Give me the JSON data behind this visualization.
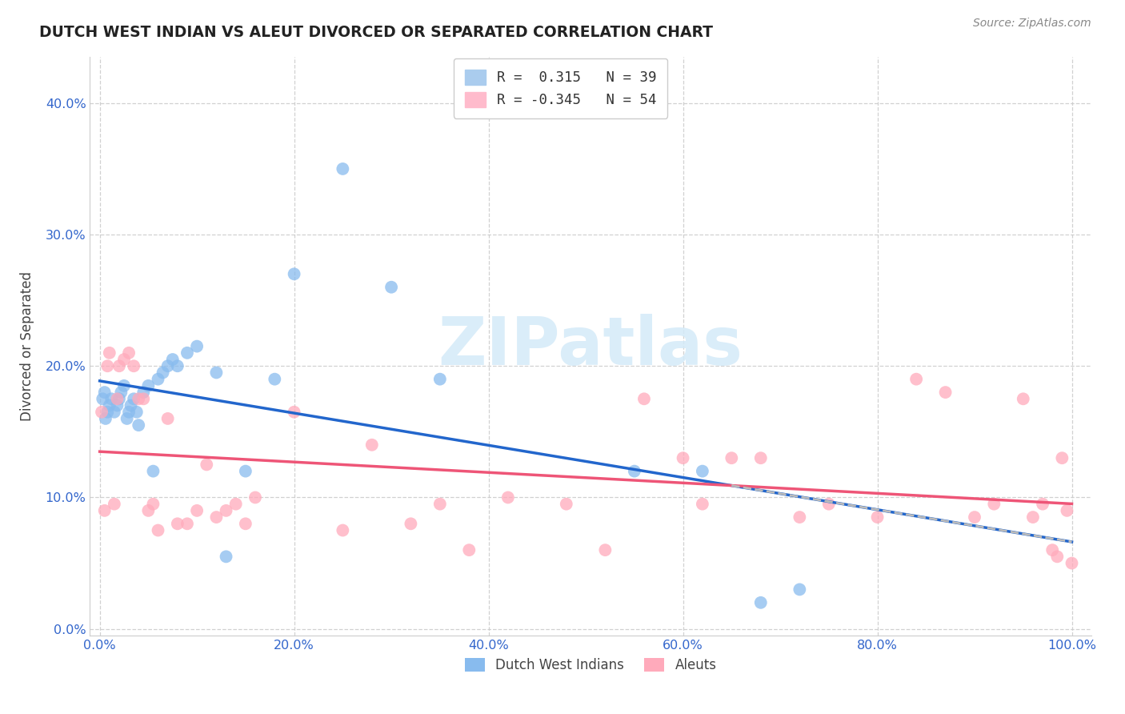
{
  "title": "DUTCH WEST INDIAN VS ALEUT DIVORCED OR SEPARATED CORRELATION CHART",
  "source": "Source: ZipAtlas.com",
  "ylabel": "Divorced or Separated",
  "blue_label": "Dutch West Indians",
  "pink_label": "Aleuts",
  "legend_blue_text": "R =  0.315   N = 39",
  "legend_pink_text": "R = -0.345   N = 54",
  "blue_dot_color": "#88BBEE",
  "pink_dot_color": "#FFAABB",
  "blue_line_color": "#2266CC",
  "pink_line_color": "#EE5577",
  "dashed_color": "#BBBBBB",
  "grid_color": "#CCCCCC",
  "text_color": "#444444",
  "tick_color": "#3366CC",
  "title_color": "#222222",
  "source_color": "#888888",
  "watermark": "ZIPatlas",
  "watermark_color": "#D4EAF8",
  "xlim": [
    -0.01,
    1.02
  ],
  "ylim": [
    -0.005,
    0.435
  ],
  "xticks": [
    0.0,
    0.2,
    0.4,
    0.6,
    0.8,
    1.0
  ],
  "yticks": [
    0.0,
    0.1,
    0.2,
    0.3,
    0.4
  ],
  "dutch_x": [
    0.003,
    0.005,
    0.006,
    0.008,
    0.01,
    0.012,
    0.015,
    0.018,
    0.02,
    0.022,
    0.025,
    0.028,
    0.03,
    0.032,
    0.035,
    0.038,
    0.04,
    0.045,
    0.05,
    0.055,
    0.06,
    0.065,
    0.07,
    0.075,
    0.08,
    0.09,
    0.1,
    0.12,
    0.13,
    0.15,
    0.18,
    0.2,
    0.25,
    0.3,
    0.35,
    0.55,
    0.62,
    0.68,
    0.72
  ],
  "dutch_y": [
    0.175,
    0.18,
    0.16,
    0.165,
    0.17,
    0.175,
    0.165,
    0.17,
    0.175,
    0.18,
    0.185,
    0.16,
    0.165,
    0.17,
    0.175,
    0.165,
    0.155,
    0.18,
    0.185,
    0.12,
    0.19,
    0.195,
    0.2,
    0.205,
    0.2,
    0.21,
    0.215,
    0.195,
    0.055,
    0.12,
    0.19,
    0.27,
    0.35,
    0.26,
    0.19,
    0.12,
    0.12,
    0.02,
    0.03
  ],
  "aleut_x": [
    0.002,
    0.005,
    0.008,
    0.01,
    0.015,
    0.018,
    0.02,
    0.025,
    0.03,
    0.035,
    0.04,
    0.045,
    0.05,
    0.055,
    0.06,
    0.07,
    0.08,
    0.09,
    0.1,
    0.11,
    0.12,
    0.13,
    0.14,
    0.15,
    0.16,
    0.2,
    0.25,
    0.28,
    0.32,
    0.35,
    0.38,
    0.42,
    0.48,
    0.52,
    0.56,
    0.6,
    0.62,
    0.65,
    0.68,
    0.72,
    0.75,
    0.8,
    0.84,
    0.87,
    0.9,
    0.92,
    0.95,
    0.96,
    0.97,
    0.98,
    0.985,
    0.99,
    0.995,
    1.0
  ],
  "aleut_y": [
    0.165,
    0.09,
    0.2,
    0.21,
    0.095,
    0.175,
    0.2,
    0.205,
    0.21,
    0.2,
    0.175,
    0.175,
    0.09,
    0.095,
    0.075,
    0.16,
    0.08,
    0.08,
    0.09,
    0.125,
    0.085,
    0.09,
    0.095,
    0.08,
    0.1,
    0.165,
    0.075,
    0.14,
    0.08,
    0.095,
    0.06,
    0.1,
    0.095,
    0.06,
    0.175,
    0.13,
    0.095,
    0.13,
    0.13,
    0.085,
    0.095,
    0.085,
    0.19,
    0.18,
    0.085,
    0.095,
    0.175,
    0.085,
    0.095,
    0.06,
    0.055,
    0.13,
    0.09,
    0.05
  ]
}
